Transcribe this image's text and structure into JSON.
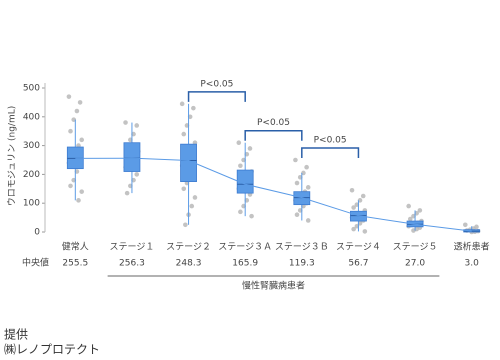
{
  "chart_data": {
    "type": "box",
    "y_label": "ウロモジュリン (ng/mL)",
    "categories": [
      "健常人",
      "ステージ１",
      "ステージ２",
      "ステージ３Ａ",
      "ステージ３Ｂ",
      "ステージ４",
      "ステージ５",
      "透析患者"
    ],
    "ylim": [
      0,
      500
    ],
    "yticks": [
      0,
      100,
      200,
      300,
      400,
      500
    ],
    "box_color": "#5b9be6",
    "point_color": "#b4b4b4",
    "line_color": "#5b9be6",
    "boxes": [
      {
        "whisker_low": 110,
        "q1": 220,
        "q3": 295,
        "whisker_high": 390
      },
      {
        "whisker_low": 135,
        "q1": 210,
        "q3": 310,
        "whisker_high": 380
      },
      {
        "whisker_low": 25,
        "q1": 175,
        "q3": 305,
        "whisker_high": 445
      },
      {
        "whisker_low": 55,
        "q1": 135,
        "q3": 215,
        "whisker_high": 310
      },
      {
        "whisker_low": 40,
        "q1": 95,
        "q3": 140,
        "whisker_high": 205
      },
      {
        "whisker_low": 2,
        "q1": 38,
        "q3": 72,
        "whisker_high": 110
      },
      {
        "whisker_low": 5,
        "q1": 18,
        "q3": 38,
        "whisker_high": 75
      },
      {
        "whisker_low": 0,
        "q1": 0,
        "q3": 8,
        "whisker_high": 20
      }
    ],
    "points": [
      [
        470,
        450,
        420,
        390,
        350,
        320,
        300,
        280,
        260,
        240,
        230,
        210,
        180,
        160,
        140,
        110
      ],
      [
        380,
        370,
        340,
        320,
        300,
        280,
        265,
        250,
        240,
        225,
        200,
        180,
        160,
        135
      ],
      [
        445,
        430,
        400,
        370,
        340,
        310,
        290,
        270,
        250,
        230,
        210,
        190,
        170,
        150,
        120,
        90,
        60,
        25
      ],
      [
        310,
        290,
        270,
        250,
        230,
        210,
        190,
        175,
        160,
        150,
        130,
        110,
        90,
        70,
        55
      ],
      [
        250,
        225,
        205,
        190,
        170,
        155,
        140,
        130,
        120,
        110,
        100,
        90,
        75,
        60,
        40
      ],
      [
        145,
        125,
        110,
        95,
        85,
        75,
        65,
        60,
        55,
        50,
        40,
        30,
        20,
        10,
        2
      ],
      [
        90,
        75,
        65,
        55,
        45,
        38,
        32,
        28,
        24,
        20,
        15,
        10,
        5
      ],
      [
        25,
        18,
        12,
        8,
        5,
        3,
        1,
        0
      ]
    ],
    "median_row": {
      "name": "中央値",
      "values": [
        255.5,
        256.3,
        248.3,
        165.9,
        119.3,
        56.7,
        27.0,
        3.0
      ],
      "value_labels": [
        "255.5",
        "256.3",
        "248.3",
        "165.9",
        "119.3",
        "56.7",
        "27.0",
        "3.0"
      ]
    },
    "annotations": [
      {
        "text": "P<0.05",
        "between": [
          2,
          3
        ]
      },
      {
        "text": "P<0.05",
        "between": [
          3,
          4
        ]
      },
      {
        "text": "P<0.05",
        "between": [
          4,
          5
        ]
      }
    ],
    "group_label": {
      "text": "慢性腎臓病患者",
      "span": [
        1,
        6
      ]
    },
    "credit": [
      "提供",
      "㈱レノプロテクト"
    ]
  }
}
